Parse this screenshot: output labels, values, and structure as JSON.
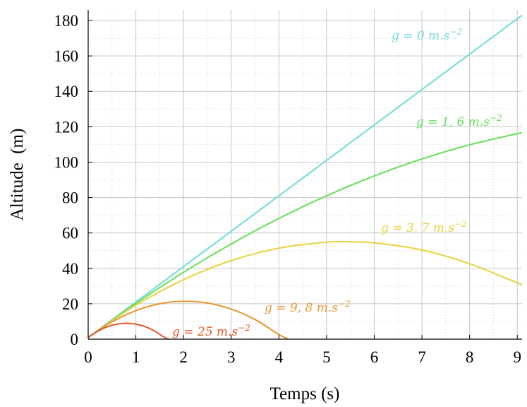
{
  "chart_data": {
    "type": "line",
    "title": "",
    "xlabel": "Temps (s)",
    "ylabel": "Altitude  (m)",
    "xlim": [
      0,
      9.1
    ],
    "ylim": [
      0,
      186
    ],
    "x_ticks": [
      "0",
      "1",
      "2",
      "3",
      "4",
      "5",
      "6",
      "7",
      "8",
      "9"
    ],
    "y_ticks": [
      "0",
      "20",
      "40",
      "60",
      "80",
      "100",
      "120",
      "140",
      "160",
      "180"
    ],
    "grid": true,
    "minor_grid": true,
    "series": [
      {
        "name": "g = 0 m.s−2",
        "label_parts": [
          "g = 0 m.s",
          "−2"
        ],
        "color": "#6fdcd8",
        "x": [
          0,
          1,
          2,
          3,
          4,
          5,
          6,
          7,
          8,
          9.1
        ],
        "y": [
          1,
          21,
          41,
          61,
          81,
          101,
          121,
          141,
          161,
          183
        ]
      },
      {
        "name": "g = 1,6 m.s−2",
        "label_parts": [
          "g = 1, 6 m.s",
          "−2"
        ],
        "color": "#66e05a",
        "x": [
          0,
          1,
          2,
          3,
          4,
          5,
          6,
          7,
          8,
          9.1
        ],
        "y": [
          1,
          20.2,
          37.8,
          53.8,
          68.2,
          81,
          92.2,
          101.8,
          109.8,
          116.7
        ]
      },
      {
        "name": "g = 3,7 m.s−2",
        "label_parts": [
          "g = 3, 7 m.s",
          "−2"
        ],
        "color": "#e6d43c",
        "x": [
          0,
          1,
          2,
          3,
          4,
          5,
          5.4,
          6,
          7,
          8,
          9.1
        ],
        "y": [
          1,
          19.2,
          33.6,
          44.4,
          51.4,
          54.8,
          55.0,
          54.4,
          50.4,
          42.6,
          30.7
        ]
      },
      {
        "name": "g = 9,8 m.s−2",
        "label_parts": [
          "g = 9, 8 m.s",
          "−2"
        ],
        "color": "#e8962e",
        "x": [
          0,
          0.5,
          1,
          1.5,
          2,
          2.5,
          3,
          3.5,
          4,
          4.2
        ],
        "y": [
          1,
          9.8,
          16.1,
          20.0,
          21.4,
          20.4,
          17.0,
          11.1,
          2.6,
          0
        ]
      },
      {
        "name": "g = 25 m.s−2",
        "label_parts": [
          "g = 25 m.s",
          "−2"
        ],
        "color": "#e05a28",
        "x": [
          0,
          0.2,
          0.4,
          0.6,
          0.8,
          1.0,
          1.2,
          1.4,
          1.6,
          1.7
        ],
        "y": [
          1,
          4.5,
          7.0,
          8.5,
          9.0,
          8.5,
          7.0,
          4.5,
          1.0,
          0
        ]
      }
    ]
  }
}
